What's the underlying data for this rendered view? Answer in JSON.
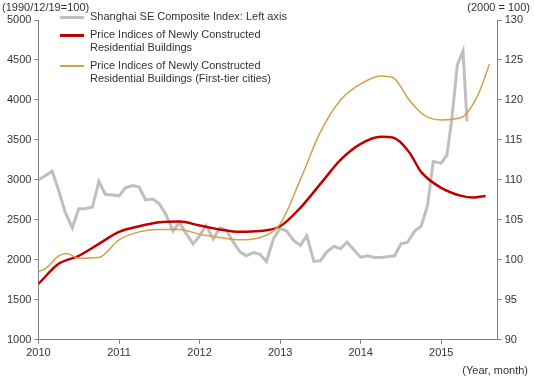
{
  "chart_data": {
    "type": "line",
    "y_label": "(1990/12/19=100)",
    "y2_label": "(2000 = 100)",
    "x_label": "(Year, month)",
    "xlim": [
      2010,
      2015.7
    ],
    "xticks": [
      2010,
      2011,
      2012,
      2013,
      2014,
      2015
    ],
    "ylim": [
      1000,
      5000
    ],
    "yticks": [
      1000,
      1500,
      2000,
      2500,
      3000,
      3500,
      4000,
      4500,
      5000
    ],
    "y2lim": [
      90,
      130
    ],
    "y2ticks": [
      90,
      95,
      100,
      105,
      110,
      115,
      120,
      125,
      130
    ],
    "grid": false,
    "legend": "upper left",
    "series": [
      {
        "name": "Shanghai SE Composite Index: Left axis",
        "color": "#bfbfbf",
        "axis": "y",
        "x": [
          2010.0,
          2010.08,
          2010.17,
          2010.25,
          2010.33,
          2010.42,
          2010.5,
          2010.58,
          2010.67,
          2010.75,
          2010.83,
          2010.92,
          2011.0,
          2011.08,
          2011.17,
          2011.25,
          2011.33,
          2011.42,
          2011.5,
          2011.58,
          2011.67,
          2011.75,
          2011.83,
          2011.92,
          2012.0,
          2012.08,
          2012.17,
          2012.25,
          2012.33,
          2012.42,
          2012.5,
          2012.58,
          2012.67,
          2012.75,
          2012.83,
          2012.92,
          2013.0,
          2013.08,
          2013.17,
          2013.25,
          2013.33,
          2013.42,
          2013.5,
          2013.58,
          2013.67,
          2013.75,
          2013.83,
          2013.92,
          2014.0,
          2014.08,
          2014.17,
          2014.25,
          2014.33,
          2014.42,
          2014.5,
          2014.58,
          2014.67,
          2014.75,
          2014.83,
          2014.9,
          2015.0,
          2015.07,
          2015.13,
          2015.2,
          2015.27,
          2015.32
        ],
        "values": [
          3000,
          3050,
          3110,
          2870,
          2600,
          2400,
          2640,
          2640,
          2660,
          2980,
          2820,
          2810,
          2800,
          2900,
          2930,
          2910,
          2750,
          2760,
          2700,
          2570,
          2360,
          2470,
          2330,
          2200,
          2300,
          2430,
          2260,
          2400,
          2370,
          2220,
          2100,
          2050,
          2090,
          2070,
          1980,
          2270,
          2390,
          2360,
          2240,
          2180,
          2300,
          1980,
          1990,
          2100,
          2170,
          2140,
          2220,
          2120,
          2030,
          2050,
          2030,
          2030,
          2040,
          2050,
          2200,
          2220,
          2360,
          2420,
          2680,
          3230,
          3210,
          3310,
          3750,
          4440,
          4610,
          3730
        ]
      },
      {
        "name": "Price Indices of Newly Constructed Residential Buildings",
        "color": "#c00000",
        "axis": "y2",
        "x": [
          2010.0,
          2010.25,
          2010.5,
          2010.75,
          2011.0,
          2011.25,
          2011.5,
          2011.75,
          2012.0,
          2012.25,
          2012.5,
          2012.75,
          2013.0,
          2013.25,
          2013.5,
          2013.75,
          2014.0,
          2014.25,
          2014.4,
          2014.6,
          2014.75,
          2015.0,
          2015.25,
          2015.4,
          2015.55
        ],
        "values": [
          97,
          99.5,
          100.5,
          102,
          103.5,
          104.2,
          104.7,
          104.8,
          104.3,
          103.8,
          103.5,
          103.6,
          104.2,
          106.5,
          109.5,
          112.5,
          114.5,
          115.4,
          115.3,
          113.5,
          111,
          109,
          108,
          107.8,
          108
        ]
      },
      {
        "name": "Price Indices of Newly Constructed Residential Buildings (First-tier cities)",
        "color": "#d4a04a",
        "axis": "y2",
        "x": [
          2010.0,
          2010.1,
          2010.25,
          2010.35,
          2010.5,
          2010.75,
          2011.0,
          2011.25,
          2011.5,
          2011.75,
          2012.0,
          2012.25,
          2012.5,
          2012.75,
          2013.0,
          2013.25,
          2013.5,
          2013.75,
          2014.0,
          2014.25,
          2014.4,
          2014.6,
          2014.8,
          2015.0,
          2015.25,
          2015.45,
          2015.6
        ],
        "values": [
          98.5,
          99,
          100.5,
          100.8,
          100.2,
          100.3,
          102.5,
          103.5,
          103.8,
          103.8,
          103.2,
          102.8,
          102.5,
          102.8,
          104.5,
          110,
          116,
          120,
          122,
          123,
          122.8,
          120,
          118,
          117.5,
          117.8,
          120.5,
          124.5
        ]
      }
    ]
  }
}
